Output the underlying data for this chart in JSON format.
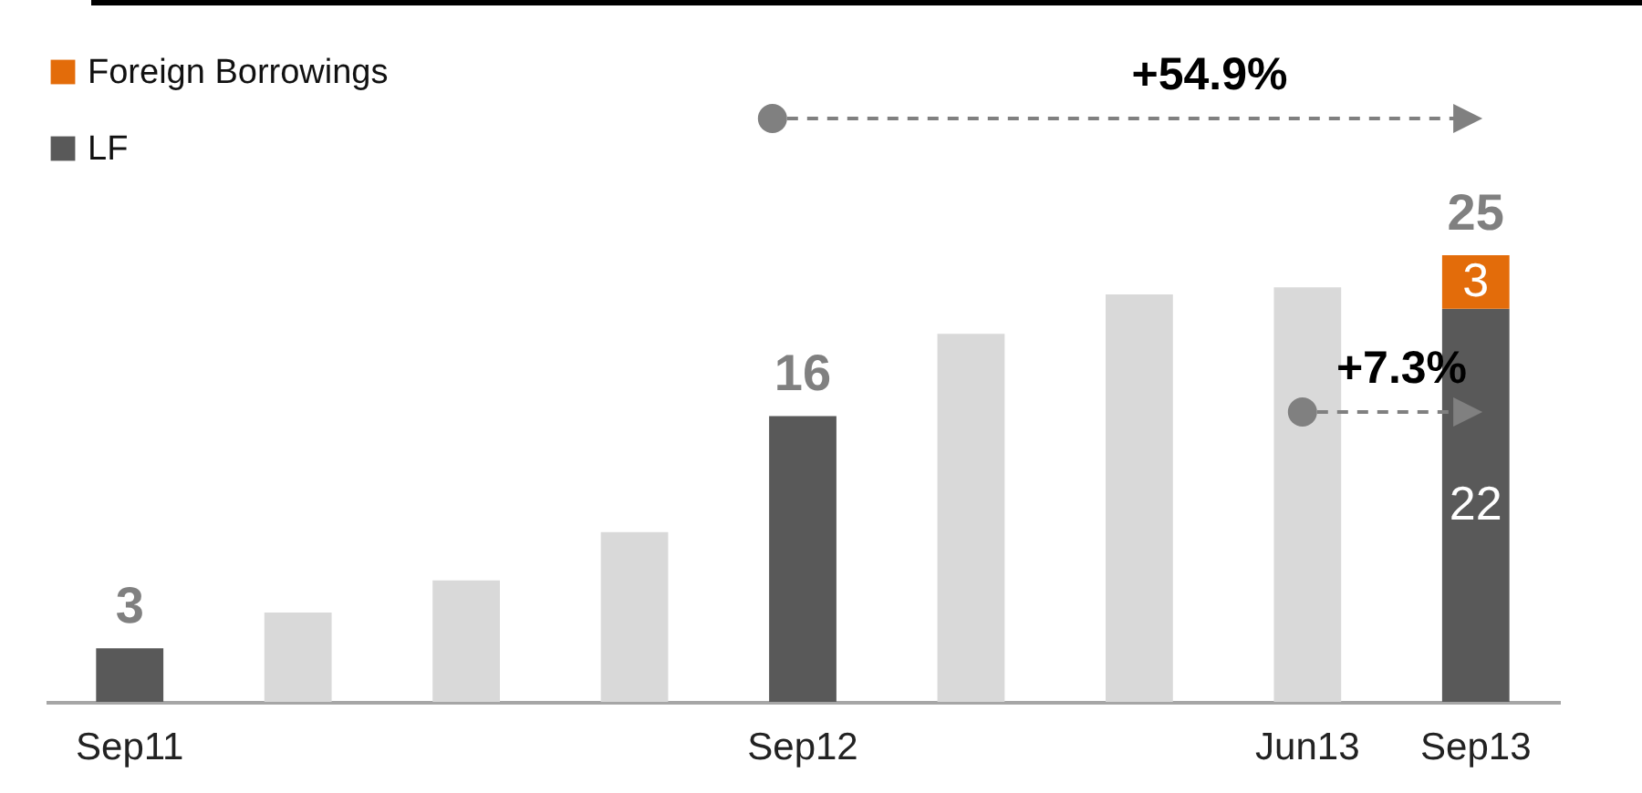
{
  "chart_data": {
    "type": "bar",
    "stacked": true,
    "categories": [
      "Sep11",
      null,
      null,
      null,
      "Sep12",
      null,
      null,
      "Jun13",
      "Sep13"
    ],
    "series": [
      {
        "name": "LF",
        "color": "#595959",
        "values": [
          3,
          null,
          null,
          null,
          16,
          null,
          null,
          null,
          22
        ],
        "value_labels": [
          "3",
          null,
          null,
          null,
          "16",
          null,
          null,
          null,
          "22"
        ]
      },
      {
        "name": "Foreign Borrowings",
        "color": "#e36c0a",
        "values": [
          null,
          null,
          null,
          null,
          null,
          null,
          null,
          null,
          3
        ],
        "value_labels": [
          null,
          null,
          null,
          null,
          null,
          null,
          null,
          null,
          "3"
        ]
      },
      {
        "color": "#d9d9d9",
        "values": [
          null,
          5.0,
          6.8,
          9.5,
          null,
          20.6,
          22.8,
          23.2,
          null
        ]
      }
    ],
    "totals": [
      null,
      null,
      null,
      null,
      null,
      null,
      null,
      null,
      "25"
    ],
    "annotations": [
      "+54.9%",
      "+7.3%"
    ],
    "legend": "top left",
    "grid": false
  }
}
